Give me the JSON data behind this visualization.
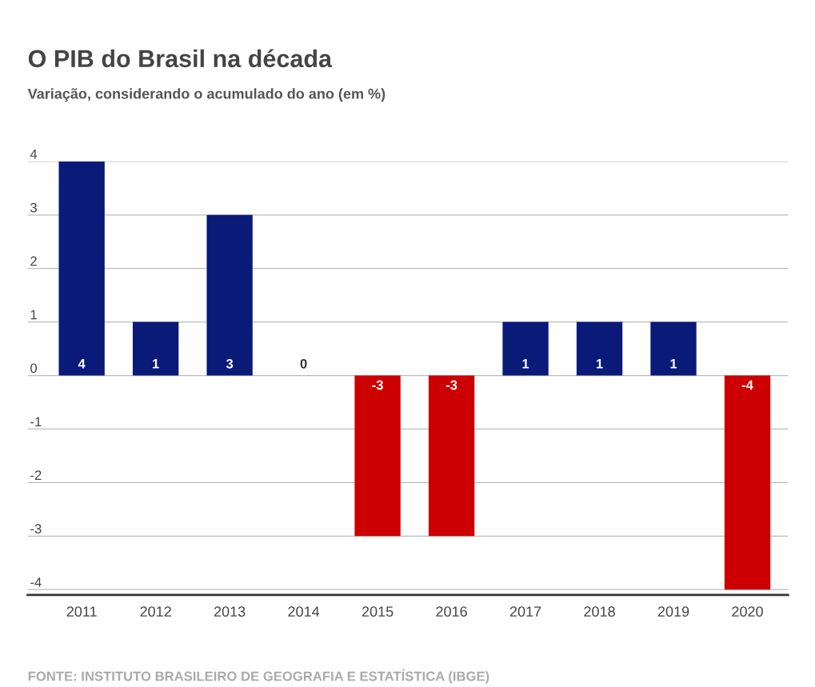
{
  "chart_data": {
    "type": "bar",
    "title": "O PIB do Brasil na década",
    "subtitle": "Variação, considerando o acumulado do ano (em %)",
    "categories": [
      "2011",
      "2012",
      "2013",
      "2014",
      "2015",
      "2016",
      "2017",
      "2018",
      "2019",
      "2020"
    ],
    "values": [
      4,
      1,
      3,
      0,
      -3,
      -3,
      1,
      1,
      1,
      -4
    ],
    "colors": [
      "#0a1a78",
      "#0a1a78",
      "#0a1a78",
      "#0a1a78",
      "#cc0000",
      "#cc0000",
      "#0a1a78",
      "#0a1a78",
      "#0a1a78",
      "#cc0000"
    ],
    "ylim": [
      -4.1,
      4
    ],
    "yticks": [
      -4,
      -3,
      -2,
      -1,
      0,
      1,
      2,
      3,
      4
    ],
    "grid": "y",
    "data_labels": true,
    "annotations": [
      "FONTE: INSTITUTO BRASILEIRO DE GEOGRAFIA E ESTATÍSTICA (IBGE)"
    ]
  }
}
